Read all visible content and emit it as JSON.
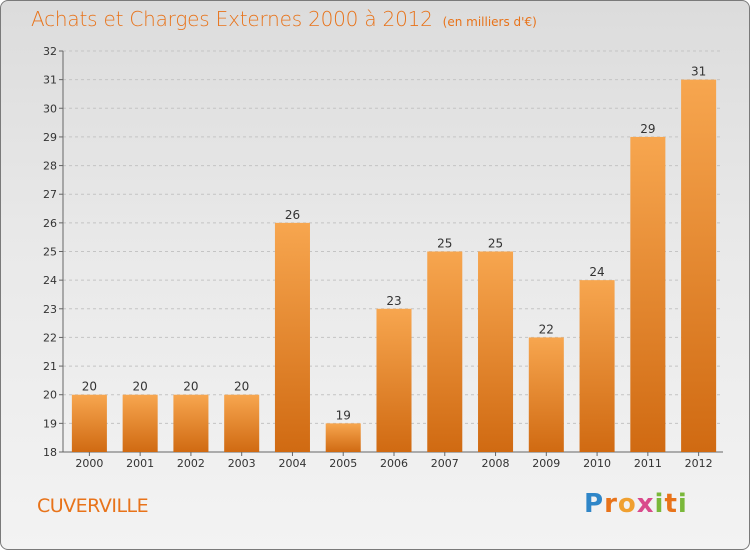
{
  "chart_data": {
    "type": "bar",
    "title": "Achats et Charges Externes 2000 à 2012",
    "subtitle": "(en milliers d'€)",
    "categories": [
      "2000",
      "2001",
      "2002",
      "2003",
      "2004",
      "2005",
      "2006",
      "2007",
      "2008",
      "2009",
      "2010",
      "2011",
      "2012"
    ],
    "values": [
      20,
      20,
      20,
      20,
      26,
      19,
      23,
      25,
      25,
      22,
      24,
      29,
      31
    ],
    "ylim": [
      18,
      32
    ],
    "yticks": [
      18,
      19,
      20,
      21,
      22,
      23,
      24,
      25,
      26,
      27,
      28,
      29,
      30,
      31,
      32
    ],
    "grid": true,
    "bar_color_top": "#f7a64f",
    "bar_color_bottom": "#d06a12"
  },
  "footer": {
    "commune": "CUVERVILLE",
    "logo": "Proxiti"
  }
}
